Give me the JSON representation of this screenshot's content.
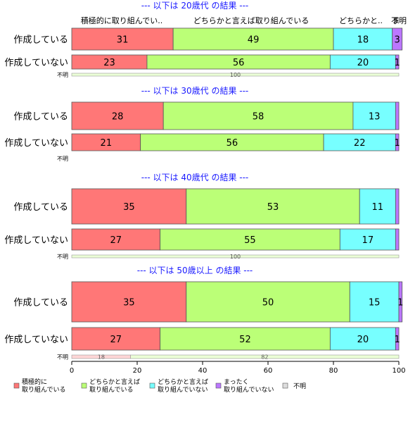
{
  "colors": [
    "#ff7777",
    "#bbff77",
    "#77ffff",
    "#bb77ff",
    "#dddddd"
  ],
  "legend": [
    [
      "積極的に",
      "取り組んでいる"
    ],
    [
      "どちらかと言えば",
      "取り組んでいる"
    ],
    [
      "どちらかと言えば",
      "取り組んでいない"
    ],
    [
      "まったく",
      "取り組んでいない"
    ],
    [
      "不明"
    ]
  ],
  "column_headers": [
    "積極的に取り組んでい..",
    "どちらかと言えば取り組んでいる",
    "どちらかと..",
    "ま",
    "不明"
  ],
  "chart_data": {
    "type": "bar",
    "orientation": "horizontal",
    "stacked": true,
    "xlim": [
      0,
      100
    ],
    "xticks": [
      0,
      20,
      40,
      60,
      80,
      100
    ],
    "series_names": [
      "積極的に取り組んでいる",
      "どちらかと言えば取り組んでいる",
      "どちらかと言えば取り組んでいない",
      "まったく取り組んでいない",
      "不明"
    ],
    "panels": [
      {
        "title": "--- 以下は 20歳代 の結果 ---",
        "rows": [
          {
            "label": "作成している",
            "values": [
              31,
              49,
              18,
              3,
              0
            ],
            "labels": [
              "31",
              "49",
              "18",
              "3",
              ""
            ]
          },
          {
            "label": "作成していない",
            "values": [
              23,
              56,
              20,
              1,
              0
            ],
            "labels": [
              "23",
              "56",
              "20",
              "1",
              ""
            ]
          },
          {
            "label": "不明",
            "values": [
              0,
              100,
              0,
              0,
              0
            ],
            "labels": [
              "",
              "100",
              "",
              "",
              ""
            ]
          }
        ]
      },
      {
        "title": "--- 以下は 30歳代 の結果 ---",
        "rows": [
          {
            "label": "作成している",
            "values": [
              28,
              58,
              13,
              1,
              0
            ],
            "labels": [
              "28",
              "58",
              "13",
              "",
              ""
            ]
          },
          {
            "label": "作成していない",
            "values": [
              21,
              56,
              22,
              1,
              0
            ],
            "labels": [
              "21",
              "56",
              "22",
              "1",
              ""
            ]
          },
          {
            "label": "不明",
            "values": [
              0,
              0,
              0,
              0,
              0
            ],
            "labels": [
              "",
              "",
              "",
              "",
              ""
            ]
          }
        ]
      },
      {
        "title": "--- 以下は 40歳代 の結果 ---",
        "rows": [
          {
            "label": "作成している",
            "values": [
              35,
              53,
              11,
              1,
              0
            ],
            "labels": [
              "35",
              "53",
              "11",
              "",
              ""
            ]
          },
          {
            "label": "作成していない",
            "values": [
              27,
              55,
              17,
              1,
              0
            ],
            "labels": [
              "27",
              "55",
              "17",
              "",
              ""
            ]
          },
          {
            "label": "不明",
            "values": [
              0,
              100,
              0,
              0,
              0
            ],
            "labels": [
              "",
              "100",
              "",
              "",
              ""
            ]
          }
        ]
      },
      {
        "title": "--- 以下は 50歳以上 の結果 ---",
        "rows": [
          {
            "label": "作成している",
            "values": [
              35,
              50,
              15,
              1,
              0
            ],
            "labels": [
              "35",
              "50",
              "15",
              "1",
              ""
            ]
          },
          {
            "label": "作成していない",
            "values": [
              27,
              52,
              20,
              1,
              0
            ],
            "labels": [
              "27",
              "52",
              "20",
              "1",
              ""
            ]
          },
          {
            "label": "不明",
            "values": [
              18,
              82,
              0,
              0,
              0
            ],
            "labels": [
              "18",
              "82",
              "",
              "",
              ""
            ]
          }
        ]
      }
    ]
  }
}
